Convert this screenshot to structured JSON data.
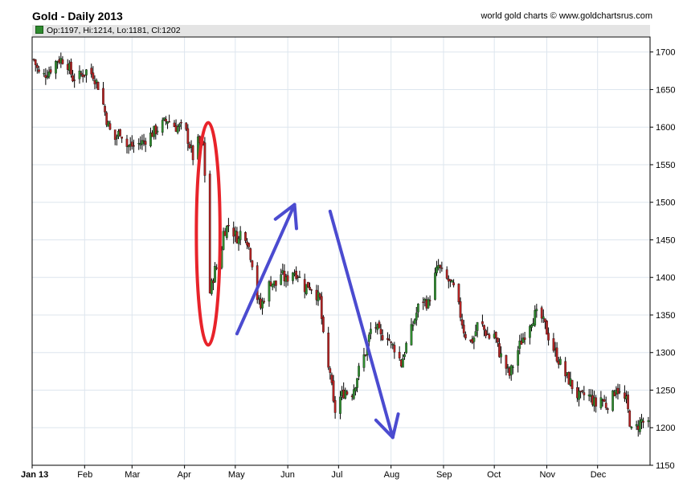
{
  "header": {
    "title": "Gold - Daily 2013",
    "credit": "world gold charts © www.goldchartsrus.com",
    "ohlc": "Op:1197, Hi:1214, Lo:1181, Cl:1202"
  },
  "chart_data": {
    "type": "candlestick",
    "title": "Gold - Daily 2013",
    "xlabel": "",
    "ylabel": "",
    "ylim": [
      1150,
      1720
    ],
    "yticks": [
      1150,
      1200,
      1250,
      1300,
      1350,
      1400,
      1450,
      1500,
      1550,
      1600,
      1650,
      1700
    ],
    "x_range_days": [
      0,
      365
    ],
    "xticks": [
      {
        "label": "Jan 13",
        "day": 0
      },
      {
        "label": "Feb",
        "day": 31
      },
      {
        "label": "Mar",
        "day": 59
      },
      {
        "label": "Apr",
        "day": 90
      },
      {
        "label": "May",
        "day": 120
      },
      {
        "label": "Jun",
        "day": 151
      },
      {
        "label": "Jul",
        "day": 181
      },
      {
        "label": "Aug",
        "day": 212
      },
      {
        "label": "Sep",
        "day": 243
      },
      {
        "label": "Oct",
        "day": 273
      },
      {
        "label": "Nov",
        "day": 304
      },
      {
        "label": "Dec",
        "day": 334
      }
    ],
    "grid": true,
    "colors": {
      "up": "#2e8b2e",
      "down": "#b22222",
      "wick": "#000000",
      "grid": "#dde6ee",
      "highlight_ellipse": "#e8232a",
      "arrows": "#4b4bd0"
    },
    "price_path": [
      {
        "day": 1,
        "close": 1690
      },
      {
        "day": 5,
        "close": 1665
      },
      {
        "day": 10,
        "close": 1675
      },
      {
        "day": 15,
        "close": 1690
      },
      {
        "day": 20,
        "close": 1690
      },
      {
        "day": 24,
        "close": 1665
      },
      {
        "day": 28,
        "close": 1668
      },
      {
        "day": 32,
        "close": 1675
      },
      {
        "day": 36,
        "close": 1670
      },
      {
        "day": 40,
        "close": 1650
      },
      {
        "day": 44,
        "close": 1610
      },
      {
        "day": 48,
        "close": 1580
      },
      {
        "day": 52,
        "close": 1595
      },
      {
        "day": 56,
        "close": 1575
      },
      {
        "day": 60,
        "close": 1575
      },
      {
        "day": 65,
        "close": 1580
      },
      {
        "day": 70,
        "close": 1590
      },
      {
        "day": 75,
        "close": 1600
      },
      {
        "day": 80,
        "close": 1610
      },
      {
        "day": 85,
        "close": 1600
      },
      {
        "day": 90,
        "close": 1600
      },
      {
        "day": 95,
        "close": 1560
      },
      {
        "day": 98,
        "close": 1580
      },
      {
        "day": 101,
        "close": 1575
      },
      {
        "day": 103,
        "close": 1500
      },
      {
        "day": 104,
        "close": 1370
      },
      {
        "day": 106,
        "close": 1390
      },
      {
        "day": 108,
        "close": 1410
      },
      {
        "day": 111,
        "close": 1420
      },
      {
        "day": 113,
        "close": 1460
      },
      {
        "day": 116,
        "close": 1470
      },
      {
        "day": 119,
        "close": 1460
      },
      {
        "day": 122,
        "close": 1450
      },
      {
        "day": 124,
        "close": 1470
      },
      {
        "day": 127,
        "close": 1450
      },
      {
        "day": 130,
        "close": 1420
      },
      {
        "day": 132,
        "close": 1380
      },
      {
        "day": 135,
        "close": 1360
      },
      {
        "day": 138,
        "close": 1380
      },
      {
        "day": 141,
        "close": 1395
      },
      {
        "day": 144,
        "close": 1390
      },
      {
        "day": 147,
        "close": 1405
      },
      {
        "day": 150,
        "close": 1395
      },
      {
        "day": 153,
        "close": 1410
      },
      {
        "day": 157,
        "close": 1405
      },
      {
        "day": 160,
        "close": 1385
      },
      {
        "day": 163,
        "close": 1390
      },
      {
        "day": 166,
        "close": 1385
      },
      {
        "day": 170,
        "close": 1370
      },
      {
        "day": 172,
        "close": 1320
      },
      {
        "day": 174,
        "close": 1280
      },
      {
        "day": 176,
        "close": 1275
      },
      {
        "day": 178,
        "close": 1230
      },
      {
        "day": 180,
        "close": 1215
      },
      {
        "day": 182,
        "close": 1240
      },
      {
        "day": 185,
        "close": 1250
      },
      {
        "day": 188,
        "close": 1240
      },
      {
        "day": 191,
        "close": 1260
      },
      {
        "day": 194,
        "close": 1285
      },
      {
        "day": 197,
        "close": 1300
      },
      {
        "day": 200,
        "close": 1330
      },
      {
        "day": 203,
        "close": 1335
      },
      {
        "day": 206,
        "close": 1320
      },
      {
        "day": 209,
        "close": 1330
      },
      {
        "day": 212,
        "close": 1310
      },
      {
        "day": 215,
        "close": 1305
      },
      {
        "day": 218,
        "close": 1285
      },
      {
        "day": 221,
        "close": 1310
      },
      {
        "day": 224,
        "close": 1330
      },
      {
        "day": 228,
        "close": 1360
      },
      {
        "day": 231,
        "close": 1370
      },
      {
        "day": 234,
        "close": 1365
      },
      {
        "day": 237,
        "close": 1395
      },
      {
        "day": 240,
        "close": 1415
      },
      {
        "day": 243,
        "close": 1400
      },
      {
        "day": 246,
        "close": 1395
      },
      {
        "day": 249,
        "close": 1385
      },
      {
        "day": 252,
        "close": 1360
      },
      {
        "day": 255,
        "close": 1330
      },
      {
        "day": 258,
        "close": 1310
      },
      {
        "day": 261,
        "close": 1320
      },
      {
        "day": 264,
        "close": 1345
      },
      {
        "day": 267,
        "close": 1330
      },
      {
        "day": 270,
        "close": 1320
      },
      {
        "day": 273,
        "close": 1325
      },
      {
        "day": 276,
        "close": 1300
      },
      {
        "day": 279,
        "close": 1285
      },
      {
        "day": 282,
        "close": 1270
      },
      {
        "day": 285,
        "close": 1290
      },
      {
        "day": 288,
        "close": 1310
      },
      {
        "day": 291,
        "close": 1325
      },
      {
        "day": 294,
        "close": 1340
      },
      {
        "day": 297,
        "close": 1350
      },
      {
        "day": 300,
        "close": 1350
      },
      {
        "day": 303,
        "close": 1335
      },
      {
        "day": 306,
        "close": 1315
      },
      {
        "day": 309,
        "close": 1300
      },
      {
        "day": 312,
        "close": 1285
      },
      {
        "day": 315,
        "close": 1270
      },
      {
        "day": 318,
        "close": 1260
      },
      {
        "day": 321,
        "close": 1245
      },
      {
        "day": 324,
        "close": 1240
      },
      {
        "day": 327,
        "close": 1245
      },
      {
        "day": 330,
        "close": 1240
      },
      {
        "day": 333,
        "close": 1230
      },
      {
        "day": 336,
        "close": 1240
      },
      {
        "day": 339,
        "close": 1230
      },
      {
        "day": 342,
        "close": 1235
      },
      {
        "day": 345,
        "close": 1255
      },
      {
        "day": 348,
        "close": 1240
      },
      {
        "day": 351,
        "close": 1235
      },
      {
        "day": 354,
        "close": 1195
      },
      {
        "day": 357,
        "close": 1200
      },
      {
        "day": 360,
        "close": 1210
      },
      {
        "day": 363,
        "close": 1202
      }
    ],
    "annotations": [
      {
        "type": "ellipse",
        "center_day": 104,
        "center_price": 1458,
        "day_radius": 7,
        "price_radius": 148
      },
      {
        "type": "arrow",
        "from": {
          "day": 121,
          "price": 1325
        },
        "to": {
          "day": 155,
          "price": 1497
        }
      },
      {
        "type": "arrow",
        "from": {
          "day": 176,
          "price": 1488
        },
        "to": {
          "day": 213,
          "price": 1187
        }
      }
    ]
  }
}
